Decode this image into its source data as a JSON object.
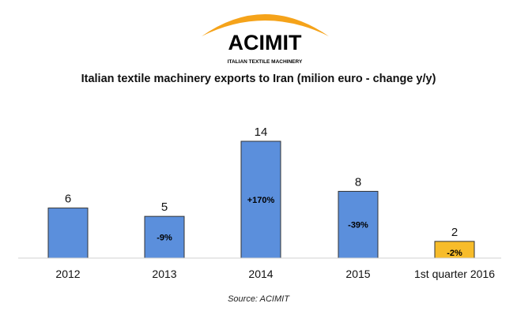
{
  "logo": {
    "name": "ACIMIT",
    "tagline": "ITALIAN TEXTILE MACHINERY",
    "arc_color": "#f5a31a",
    "text_color": "#000000"
  },
  "chart_data": {
    "type": "bar",
    "title": "Italian textile machinery exports to Iran (milion euro - change y/y)",
    "categories": [
      "2012",
      "2013",
      "2014",
      "2015",
      "1st quarter 2016"
    ],
    "values": [
      6,
      5,
      14,
      8,
      2
    ],
    "value_labels": [
      "6",
      "5",
      "14",
      "8",
      "2"
    ],
    "change_labels": [
      "",
      "-9%",
      "+170%",
      "-39%",
      "-2%"
    ],
    "bar_colors": [
      "#5b8fdc",
      "#5b8fdc",
      "#5b8fdc",
      "#5b8fdc",
      "#f7bc2a"
    ],
    "ylim": [
      0,
      14
    ],
    "xlabel": "",
    "ylabel": "",
    "grid": false,
    "legend": "none"
  },
  "source": "Source: ACIMIT"
}
